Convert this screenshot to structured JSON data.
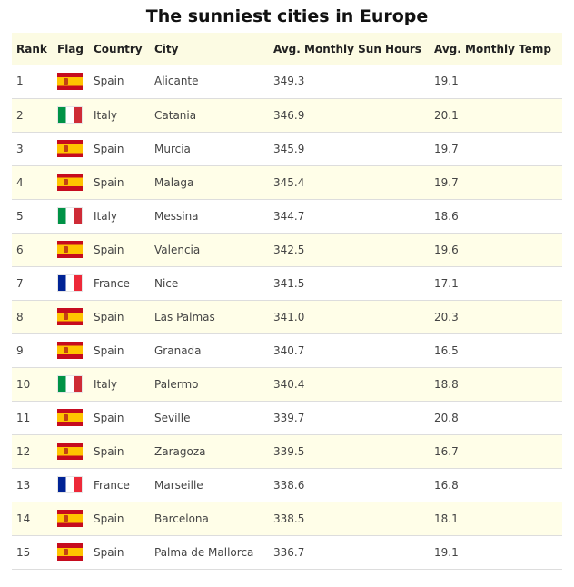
{
  "title": "The sunniest cities in Europe",
  "headers": {
    "rank": "Rank",
    "flag": "Flag",
    "country": "Country",
    "city": "City",
    "sun_hours": "Avg. Monthly Sun Hours",
    "temp": "Avg. Monthly Temp"
  },
  "colors": {
    "header_bg": "#fcfbe3",
    "stripe_bg": "#fffee8"
  },
  "rows": [
    {
      "rank": "1",
      "flag": "spain-flag-icon",
      "country": "Spain",
      "city": "Alicante",
      "sun": "349.3",
      "temp": "19.1"
    },
    {
      "rank": "2",
      "flag": "italy-flag-icon",
      "country": "Italy",
      "city": "Catania",
      "sun": "346.9",
      "temp": "20.1"
    },
    {
      "rank": "3",
      "flag": "spain-flag-icon",
      "country": "Spain",
      "city": "Murcia",
      "sun": "345.9",
      "temp": "19.7"
    },
    {
      "rank": "4",
      "flag": "spain-flag-icon",
      "country": "Spain",
      "city": "Malaga",
      "sun": "345.4",
      "temp": "19.7"
    },
    {
      "rank": "5",
      "flag": "italy-flag-icon",
      "country": "Italy",
      "city": "Messina",
      "sun": "344.7",
      "temp": "18.6"
    },
    {
      "rank": "6",
      "flag": "spain-flag-icon",
      "country": "Spain",
      "city": "Valencia",
      "sun": "342.5",
      "temp": "19.6"
    },
    {
      "rank": "7",
      "flag": "france-flag-icon",
      "country": "France",
      "city": "Nice",
      "sun": "341.5",
      "temp": "17.1"
    },
    {
      "rank": "8",
      "flag": "spain-flag-icon",
      "country": "Spain",
      "city": "Las Palmas",
      "sun": "341.0",
      "temp": "20.3"
    },
    {
      "rank": "9",
      "flag": "spain-flag-icon",
      "country": "Spain",
      "city": "Granada",
      "sun": "340.7",
      "temp": "16.5"
    },
    {
      "rank": "10",
      "flag": "italy-flag-icon",
      "country": "Italy",
      "city": "Palermo",
      "sun": "340.4",
      "temp": "18.8"
    },
    {
      "rank": "11",
      "flag": "spain-flag-icon",
      "country": "Spain",
      "city": "Seville",
      "sun": "339.7",
      "temp": "20.8"
    },
    {
      "rank": "12",
      "flag": "spain-flag-icon",
      "country": "Spain",
      "city": "Zaragoza",
      "sun": "339.5",
      "temp": "16.7"
    },
    {
      "rank": "13",
      "flag": "france-flag-icon",
      "country": "France",
      "city": "Marseille",
      "sun": "338.6",
      "temp": "16.8"
    },
    {
      "rank": "14",
      "flag": "spain-flag-icon",
      "country": "Spain",
      "city": "Barcelona",
      "sun": "338.5",
      "temp": "18.1"
    },
    {
      "rank": "15",
      "flag": "spain-flag-icon",
      "country": "Spain",
      "city": "Palma de Mallorca",
      "sun": "336.7",
      "temp": "19.1"
    }
  ]
}
